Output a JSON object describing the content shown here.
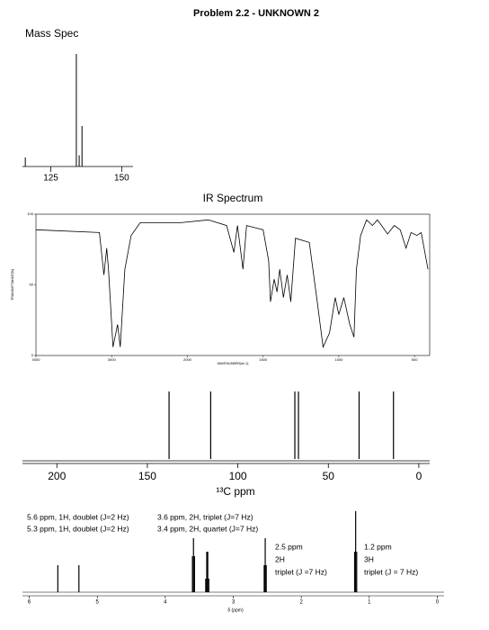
{
  "title": "Problem 2.2 - UNKNOWN 2",
  "chart_data": [
    {
      "type": "bar",
      "title": "Mass Spec",
      "color": "#000000",
      "x": [
        116,
        134,
        135,
        136
      ],
      "values": [
        8,
        100,
        10,
        36
      ],
      "xlim": [
        115,
        154
      ],
      "xticks": [
        125,
        150
      ],
      "ylim": [
        0,
        100
      ]
    },
    {
      "type": "line",
      "title": "IR Spectrum",
      "color": "#000000",
      "xscale": "tick-spaced",
      "xlabel": "WAVENUMBER[cm-1]",
      "ylabel": "TRANSMITTANCE[%]",
      "x": [
        4000,
        3162,
        3102,
        3066,
        3042,
        2982,
        2922,
        2886,
        2826,
        2743,
        2623,
        2084,
        1862,
        1741,
        1693,
        1669,
        1633,
        1609,
        1500,
        1463,
        1451,
        1427,
        1408,
        1390,
        1366,
        1341,
        1317,
        1286,
        1195,
        1146,
        1104,
        1061,
        1024,
        1000,
        967,
        928,
        900,
        884,
        856,
        817,
        778,
        745,
        678,
        634,
        595,
        556,
        523,
        484,
        456,
        411
      ],
      "values": [
        89,
        87,
        57,
        76,
        61,
        6,
        22,
        6,
        61,
        85,
        94,
        94,
        96,
        92,
        73,
        92,
        61,
        92,
        89,
        67,
        38,
        54,
        45,
        61,
        41,
        57,
        38,
        83,
        80,
        41,
        6,
        16,
        41,
        29,
        41,
        22,
        13,
        61,
        85,
        96,
        92,
        96,
        86,
        92,
        89,
        76,
        87,
        85,
        87,
        61
      ],
      "xlim": [
        4000,
        400
      ],
      "xticks": [
        4000,
        3000,
        2000,
        1500,
        1000,
        500
      ],
      "ylim": [
        0,
        100
      ],
      "yticks": [
        0,
        50,
        100
      ]
    },
    {
      "type": "stem",
      "xlabel": "¹³C ppm",
      "color": "#000000",
      "x": [
        138,
        115,
        68.5,
        66.5,
        33,
        14
      ],
      "values": [
        100,
        100,
        100,
        100,
        100,
        100
      ],
      "xlim": [
        219,
        -6
      ],
      "xticks": [
        200,
        150,
        100,
        50,
        0
      ],
      "ylim": [
        0,
        100
      ]
    },
    {
      "type": "stem",
      "xlabel": "δ (ppm)",
      "color": "#000000",
      "x": [
        5.58,
        5.27,
        3.6,
        3.585,
        3.57,
        3.405,
        3.39,
        3.375,
        3.36,
        2.545,
        2.53,
        2.515,
        1.215,
        1.2,
        1.185
      ],
      "values": [
        30,
        30,
        40,
        60,
        40,
        15,
        45,
        45,
        15,
        30,
        60,
        30,
        45,
        90,
        45
      ],
      "xlim": [
        6.1,
        -0.1
      ],
      "xticks": [
        6,
        5,
        4,
        3,
        2,
        1,
        0
      ],
      "ylim": [
        0,
        100
      ],
      "annotations": [
        "5.6 ppm, 1H, doublet (J=2 Hz)",
        "5.3 ppm, 1H, doublet (J=2 Hz)",
        "3.6 ppm, 2H, triplet (J=7 Hz)",
        "3.4 ppm, 2H, quartet (J=7 Hz)",
        "2.5 ppm",
        "2H",
        "triplet (J =7 Hz)",
        "1.2 ppm",
        "3H",
        "triplet (J = 7 Hz)"
      ]
    }
  ]
}
